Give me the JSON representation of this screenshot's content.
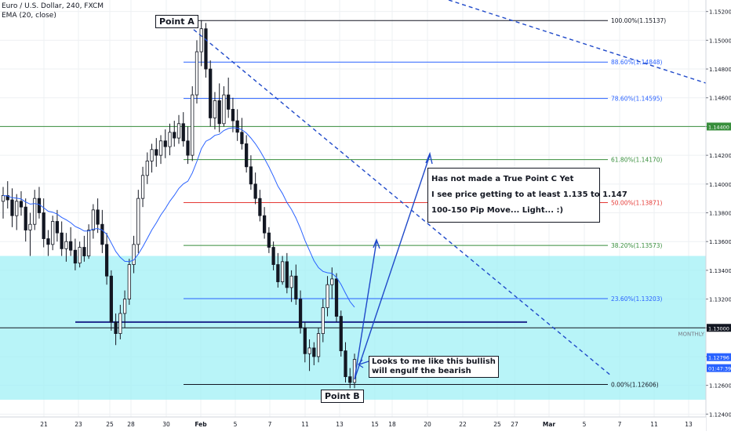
{
  "header": {
    "symbol_line": "Euro / U.S. Dollar, 240, FXCM",
    "indicator_line": "EMA (20, close)"
  },
  "colors": {
    "cyan_zone": "#a0f0f5",
    "fib_100": "#131722",
    "fib_886": "#2962ff",
    "fib_786": "#2962ff",
    "fib_618": "#388e3c",
    "fib_50": "#e53935",
    "fib_382": "#388e3c",
    "fib_236": "#2962ff",
    "fib_0": "#131722",
    "ema": "#2962ff",
    "trendline": "#1f49c9",
    "candle": "#131722"
  },
  "chart_data": {
    "type": "candlestick",
    "instrument": "Euro / U.S. Dollar, 240, FXCM",
    "ylim": [
      1.1238,
      1.1528
    ],
    "y_ticks": [
      1.152,
      1.15,
      1.148,
      1.146,
      1.144,
      1.142,
      1.14,
      1.138,
      1.136,
      1.134,
      1.132,
      1.13,
      1.128,
      1.126,
      1.124
    ],
    "y_tick_labels": [
      "1.15200",
      "1.15000",
      "1.14800",
      "1.14600",
      "1.14400",
      "1.14200",
      "1.14000",
      "1.13800",
      "1.13600",
      "1.13400",
      "1.13200",
      "1.13000",
      "1.12800",
      "1.12600",
      "1.12400"
    ],
    "x_tick_labels": [
      "21",
      "23",
      "25",
      "28",
      "30",
      "Feb",
      "5",
      "7",
      "11",
      "13",
      "15",
      "18",
      "20",
      "22",
      "25",
      "27",
      "Mar",
      "5",
      "7",
      "11",
      "13"
    ],
    "price_labels": [
      {
        "label": "1.14400",
        "value": 1.144,
        "style": "green"
      },
      {
        "label": "1.13000",
        "value": 1.13,
        "style": "dark"
      },
      {
        "label": "1.12796",
        "value": 1.12796,
        "style": "blue"
      },
      {
        "label": "01:47:39",
        "value": 1.1272,
        "style": "blue"
      }
    ],
    "fib_levels": [
      {
        "label": "100.00%(1.15137)",
        "value": 1.15137,
        "color_key": "fib_100"
      },
      {
        "label": "88.60%(1.14848)",
        "value": 1.14848,
        "color_key": "fib_886"
      },
      {
        "label": "78.60%(1.14595)",
        "value": 1.14595,
        "color_key": "fib_786"
      },
      {
        "label": "61.80%(1.14170)",
        "value": 1.1417,
        "color_key": "fib_618"
      },
      {
        "label": "50.00%(1.13871)",
        "value": 1.13871,
        "color_key": "fib_50"
      },
      {
        "label": "38.20%(1.13573)",
        "value": 1.13573,
        "color_key": "fib_382"
      },
      {
        "label": "23.60%(1.13203)",
        "value": 1.13203,
        "color_key": "fib_236"
      },
      {
        "label": "0.00%(1.12606)",
        "value": 1.12606,
        "color_key": "fib_0"
      }
    ],
    "horizontal_lines": [
      {
        "value": 1.144,
        "color": "#388e3c",
        "label": ""
      },
      {
        "value": 1.13,
        "color": "#131722",
        "label": "MONTHLY"
      },
      {
        "value": 1.1304,
        "color": "#283593",
        "label": ""
      }
    ],
    "zone": {
      "from": 1.125,
      "to": 1.135
    },
    "annotations": {
      "point_a": "Point A",
      "point_b": "Point B",
      "callout_main": [
        "Has not made a True Point C Yet",
        "I see price getting to at least 1.135 to 1.147",
        "100-150 Pip Move... Light... :)"
      ],
      "callout_engulf": [
        "Looks to me like this bullish",
        "will engulf the bearish"
      ],
      "right_axis_label": "MONTHLY"
    },
    "candles": [
      [
        1.1388,
        1.1398,
        1.1376,
        1.1392
      ],
      [
        1.1392,
        1.1402,
        1.1383,
        1.1389
      ],
      [
        1.1389,
        1.1397,
        1.137,
        1.1378
      ],
      [
        1.1378,
        1.1393,
        1.1368,
        1.1388
      ],
      [
        1.1388,
        1.1395,
        1.1378,
        1.1384
      ],
      [
        1.1384,
        1.139,
        1.136,
        1.1368
      ],
      [
        1.1368,
        1.138,
        1.135,
        1.1372
      ],
      [
        1.1372,
        1.1396,
        1.1368,
        1.139
      ],
      [
        1.139,
        1.1398,
        1.1376,
        1.138
      ],
      [
        1.138,
        1.139,
        1.1356,
        1.1362
      ],
      [
        1.1362,
        1.1368,
        1.135,
        1.1358
      ],
      [
        1.1358,
        1.1378,
        1.1354,
        1.1374
      ],
      [
        1.1374,
        1.1382,
        1.136,
        1.1366
      ],
      [
        1.1366,
        1.1374,
        1.135,
        1.1355
      ],
      [
        1.1355,
        1.1366,
        1.1346,
        1.136
      ],
      [
        1.136,
        1.137,
        1.135,
        1.1354
      ],
      [
        1.1354,
        1.1362,
        1.134,
        1.1345
      ],
      [
        1.1345,
        1.136,
        1.1342,
        1.1356
      ],
      [
        1.1356,
        1.1364,
        1.1346,
        1.135
      ],
      [
        1.135,
        1.1372,
        1.1348,
        1.1368
      ],
      [
        1.1368,
        1.1386,
        1.1362,
        1.1382
      ],
      [
        1.1382,
        1.139,
        1.1366,
        1.1372
      ],
      [
        1.1372,
        1.1382,
        1.1352,
        1.1358
      ],
      [
        1.1358,
        1.1366,
        1.133,
        1.1336
      ],
      [
        1.1336,
        1.134,
        1.1298,
        1.1304
      ],
      [
        1.1304,
        1.131,
        1.1288,
        1.1296
      ],
      [
        1.1296,
        1.1316,
        1.1292,
        1.131
      ],
      [
        1.131,
        1.1326,
        1.13,
        1.132
      ],
      [
        1.132,
        1.1348,
        1.1316,
        1.1344
      ],
      [
        1.1344,
        1.1364,
        1.1338,
        1.1358
      ],
      [
        1.1358,
        1.1396,
        1.1352,
        1.139
      ],
      [
        1.139,
        1.1412,
        1.1384,
        1.1406
      ],
      [
        1.1406,
        1.1422,
        1.14,
        1.1416
      ],
      [
        1.1416,
        1.1428,
        1.1408,
        1.1424
      ],
      [
        1.1424,
        1.1432,
        1.1412,
        1.142
      ],
      [
        1.142,
        1.1434,
        1.1414,
        1.143
      ],
      [
        1.143,
        1.1438,
        1.1418,
        1.1426
      ],
      [
        1.1426,
        1.1442,
        1.142,
        1.1436
      ],
      [
        1.1436,
        1.1444,
        1.1426,
        1.1432
      ],
      [
        1.1432,
        1.1448,
        1.1428,
        1.1442
      ],
      [
        1.1442,
        1.145,
        1.1426,
        1.143
      ],
      [
        1.143,
        1.144,
        1.1414,
        1.142
      ],
      [
        1.142,
        1.1468,
        1.1416,
        1.1462
      ],
      [
        1.1462,
        1.15,
        1.1456,
        1.1492
      ],
      [
        1.1492,
        1.1514,
        1.1482,
        1.1508
      ],
      [
        1.1508,
        1.1512,
        1.1474,
        1.148
      ],
      [
        1.148,
        1.1486,
        1.144,
        1.1446
      ],
      [
        1.1446,
        1.1464,
        1.1438,
        1.1458
      ],
      [
        1.1458,
        1.147,
        1.1436,
        1.1442
      ],
      [
        1.1442,
        1.1468,
        1.144,
        1.1462
      ],
      [
        1.1462,
        1.1474,
        1.1446,
        1.1452
      ],
      [
        1.1452,
        1.146,
        1.1436,
        1.1444
      ],
      [
        1.1444,
        1.1452,
        1.143,
        1.1436
      ],
      [
        1.1436,
        1.1446,
        1.1424,
        1.1428
      ],
      [
        1.1428,
        1.1434,
        1.1408,
        1.1412
      ],
      [
        1.1412,
        1.142,
        1.1396,
        1.14
      ],
      [
        1.14,
        1.1408,
        1.1386,
        1.139
      ],
      [
        1.139,
        1.1396,
        1.1374,
        1.1378
      ],
      [
        1.1378,
        1.1384,
        1.1362,
        1.1366
      ],
      [
        1.1366,
        1.137,
        1.1352,
        1.1356
      ],
      [
        1.1356,
        1.136,
        1.134,
        1.1344
      ],
      [
        1.1344,
        1.1352,
        1.1328,
        1.1332
      ],
      [
        1.1332,
        1.135,
        1.133,
        1.1346
      ],
      [
        1.1346,
        1.1352,
        1.1324,
        1.1328
      ],
      [
        1.1328,
        1.134,
        1.1318,
        1.1336
      ],
      [
        1.1336,
        1.1344,
        1.1316,
        1.132
      ],
      [
        1.132,
        1.1326,
        1.1296,
        1.13
      ],
      [
        1.13,
        1.1304,
        1.1276,
        1.1282
      ],
      [
        1.1282,
        1.1292,
        1.127,
        1.1286
      ],
      [
        1.1286,
        1.129,
        1.1274,
        1.128
      ],
      [
        1.128,
        1.13,
        1.1276,
        1.1296
      ],
      [
        1.1296,
        1.132,
        1.129,
        1.1314
      ],
      [
        1.1314,
        1.1336,
        1.1308,
        1.133
      ],
      [
        1.133,
        1.1342,
        1.132,
        1.1334
      ],
      [
        1.1334,
        1.1338,
        1.1304,
        1.1308
      ],
      [
        1.1308,
        1.1312,
        1.128,
        1.1284
      ],
      [
        1.1284,
        1.129,
        1.1262,
        1.1266
      ],
      [
        1.1266,
        1.1272,
        1.1258,
        1.1262
      ],
      [
        1.1262,
        1.1282,
        1.1258,
        1.1278
      ]
    ]
  }
}
